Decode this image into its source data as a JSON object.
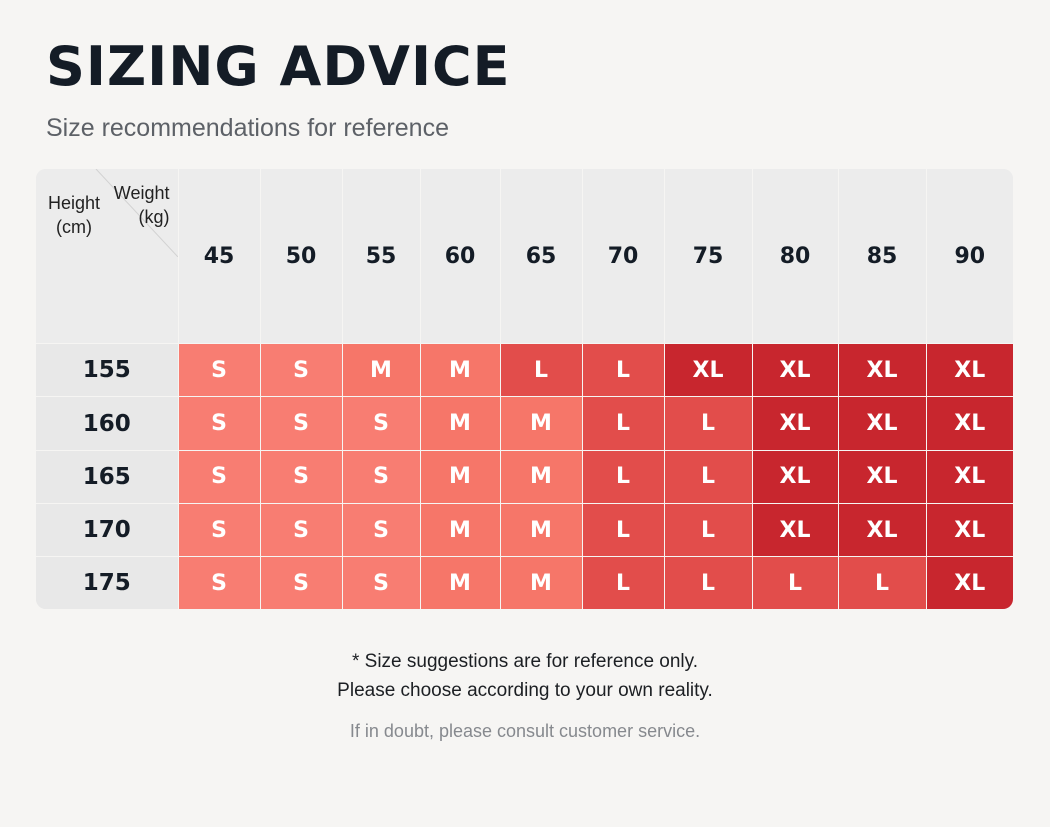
{
  "header": {
    "title": "SIZING ADVICE",
    "subtitle": "Size recommendations for reference"
  },
  "table": {
    "corner": {
      "height_label": "Height",
      "height_unit": "(cm)",
      "weight_label": "Weight",
      "weight_unit": "(kg)"
    },
    "weights": [
      "45",
      "50",
      "55",
      "60",
      "65",
      "70",
      "75",
      "80",
      "85",
      "90"
    ],
    "rows": [
      {
        "height": "155",
        "sizes": [
          "S",
          "S",
          "M",
          "M",
          "L",
          "L",
          "XL",
          "XL",
          "XL",
          "XL"
        ]
      },
      {
        "height": "160",
        "sizes": [
          "S",
          "S",
          "S",
          "M",
          "M",
          "L",
          "L",
          "XL",
          "XL",
          "XL"
        ]
      },
      {
        "height": "165",
        "sizes": [
          "S",
          "S",
          "S",
          "M",
          "M",
          "L",
          "L",
          "XL",
          "XL",
          "XL"
        ]
      },
      {
        "height": "170",
        "sizes": [
          "S",
          "S",
          "S",
          "M",
          "M",
          "L",
          "L",
          "XL",
          "XL",
          "XL"
        ]
      },
      {
        "height": "175",
        "sizes": [
          "S",
          "S",
          "S",
          "M",
          "M",
          "L",
          "L",
          "L",
          "L",
          "XL"
        ]
      }
    ],
    "size_colors": {
      "S": "#f87d72",
      "M": "#f67669",
      "L": "#e24d4b",
      "XL": "#c8262e"
    }
  },
  "footer": {
    "note_line1": "* Size suggestions are for reference only.",
    "note_line2": "Please choose according to your own reality.",
    "help_text": "If in doubt, please consult customer service."
  }
}
